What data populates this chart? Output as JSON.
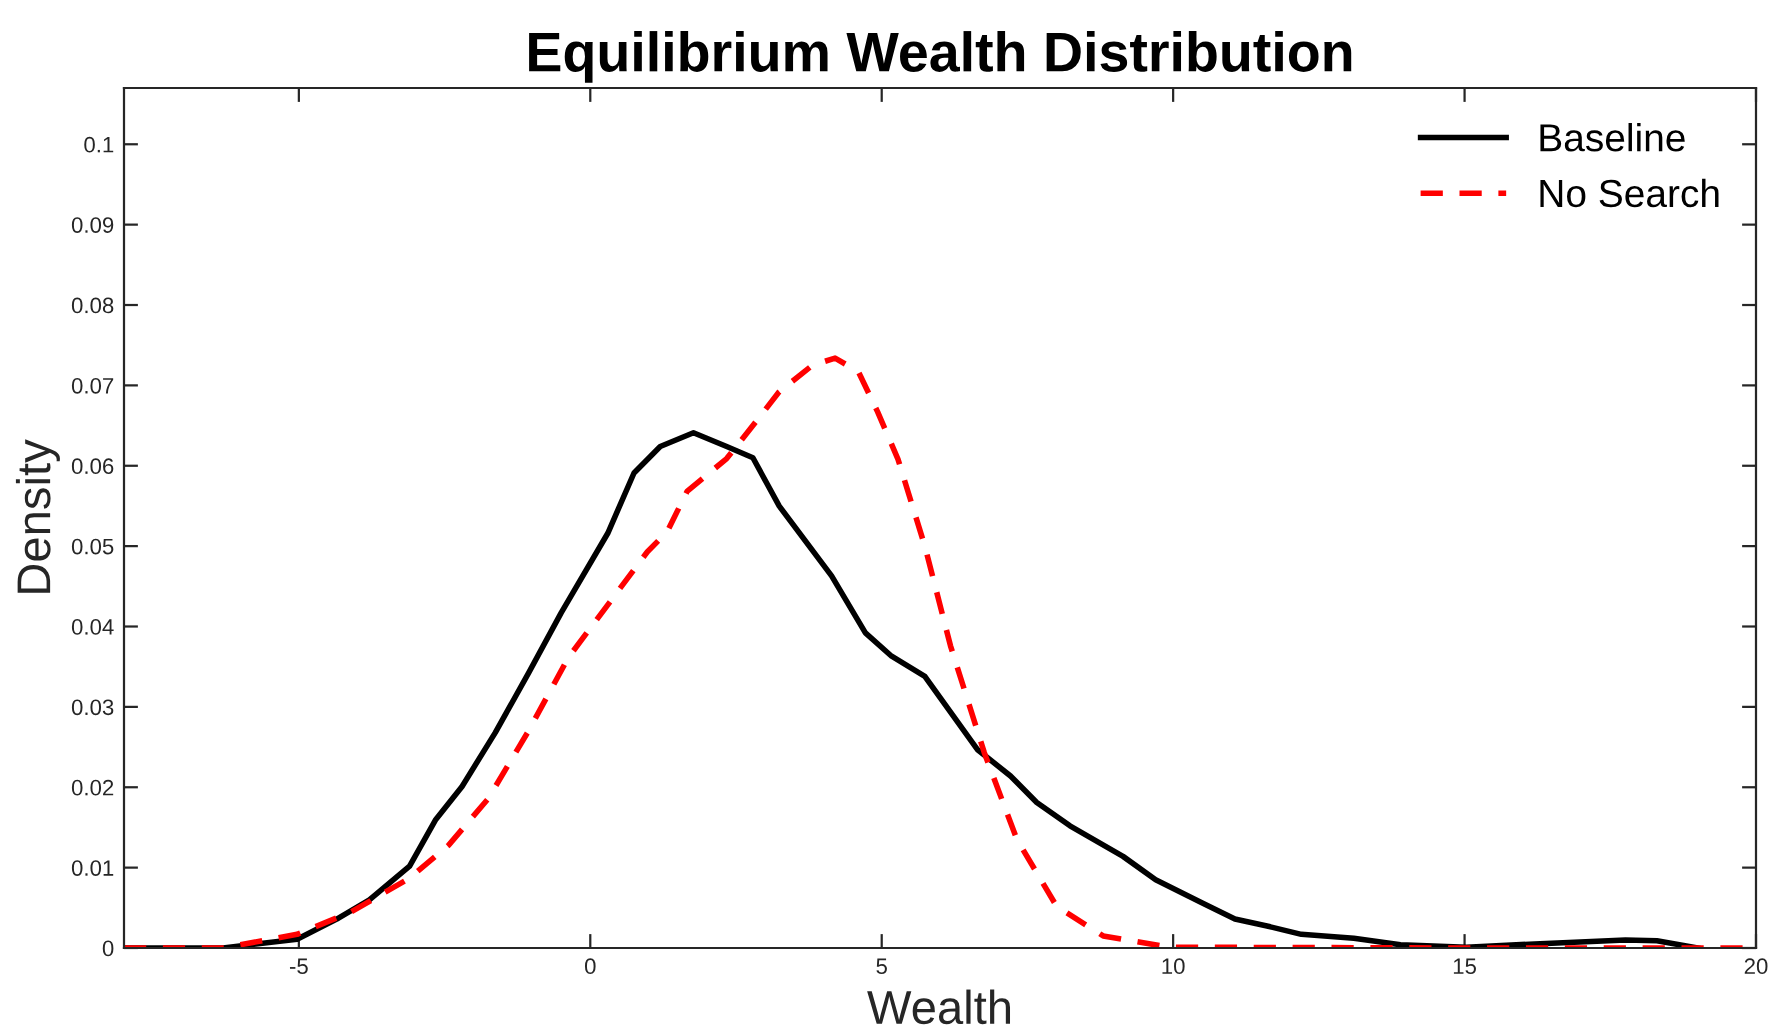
{
  "chart_data": {
    "type": "line",
    "title": "Equilibrium Wealth Distribution",
    "xlabel": "Wealth",
    "ylabel": "Density",
    "xlim": [
      -8,
      20
    ],
    "ylim": [
      0,
      0.107
    ],
    "xticks": [
      -5,
      0,
      5,
      10,
      15,
      20
    ],
    "yticks": [
      0,
      0.01,
      0.02,
      0.03,
      0.04,
      0.05,
      0.06,
      0.07,
      0.08,
      0.09,
      0.1
    ],
    "grid": false,
    "legend": "top right",
    "series": [
      {
        "name": "Baseline",
        "color": "#000000",
        "line_style": "solid",
        "x": [
          -8,
          -6.3,
          -5.03,
          -4.35,
          -3.79,
          -3.1,
          -2.65,
          -2.2,
          -1.63,
          -1.06,
          -0.5,
          0.3,
          0.75,
          1.2,
          1.77,
          2.34,
          2.79,
          3.24,
          4.14,
          4.72,
          5.17,
          5.74,
          6.64,
          7.21,
          7.66,
          8.23,
          9.14,
          9.7,
          10.5,
          11.06,
          11.63,
          12.2,
          13.1,
          13.9,
          15.03,
          16.2,
          17.76,
          18.3,
          19.0
        ],
        "values": [
          0,
          0,
          0.0011,
          0.0036,
          0.006,
          0.0102,
          0.016,
          0.0201,
          0.0268,
          0.0342,
          0.0417,
          0.0516,
          0.0591,
          0.0624,
          0.0641,
          0.0624,
          0.061,
          0.055,
          0.0463,
          0.0392,
          0.0363,
          0.0338,
          0.0247,
          0.0214,
          0.0181,
          0.0152,
          0.0114,
          0.0085,
          0.0056,
          0.0036,
          0.0027,
          0.0017,
          0.0012,
          0.0004,
          0.0001,
          0.0005,
          0.001,
          0.0009,
          0
        ]
      },
      {
        "name": "No Search",
        "color": "#ff0000",
        "line_style": "dashed",
        "x": [
          -8,
          -6.3,
          -5.03,
          -4.1,
          -3.1,
          -2.43,
          -1.75,
          -1.06,
          -0.38,
          0.3,
          0.98,
          1.32,
          1.66,
          2.34,
          2.79,
          3.24,
          3.81,
          4.2,
          4.6,
          4.93,
          5.28,
          5.74,
          6.18,
          6.76,
          7.32,
          8.0,
          8.8,
          9.93,
          15,
          20
        ],
        "values": [
          0,
          0,
          0.0017,
          0.0045,
          0.0087,
          0.0128,
          0.0186,
          0.027,
          0.0361,
          0.0427,
          0.0493,
          0.0518,
          0.0568,
          0.0609,
          0.065,
          0.0692,
          0.0725,
          0.0734,
          0.0717,
          0.0667,
          0.0608,
          0.05,
          0.0376,
          0.0243,
          0.0135,
          0.0052,
          0.0015,
          0.0001,
          0,
          0
        ]
      }
    ]
  }
}
